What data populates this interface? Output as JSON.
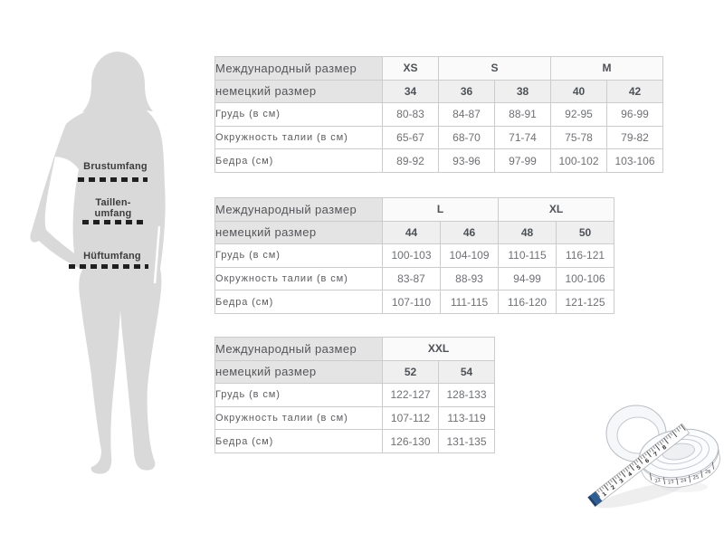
{
  "figure": {
    "bust_label": "Brustumfang",
    "waist_label_line1": "Taillen-",
    "waist_label_line2": "umfang",
    "hip_label": "Hüftumfang"
  },
  "size_tables": [
    {
      "intl_row_label": "Международный размер",
      "german_row_label": "немецкий размер",
      "intl_sizes": [
        {
          "text": "XS",
          "span": 1
        },
        {
          "text": "S",
          "span": 2
        },
        {
          "text": "M",
          "span": 2
        }
      ],
      "german_sizes": [
        "34",
        "36",
        "38",
        "40",
        "42"
      ],
      "body_rows": [
        {
          "label": "Грудь (в см)",
          "values": [
            "80-83",
            "84-87",
            "88-91",
            "92-95",
            "96-99"
          ]
        },
        {
          "label": "Окружность талии (в см)",
          "values": [
            "65-67",
            "68-70",
            "71-74",
            "75-78",
            "79-82"
          ]
        },
        {
          "label": "Бедра (см)",
          "values": [
            "89-92",
            "93-96",
            "97-99",
            "100-102",
            "103-106"
          ]
        }
      ]
    },
    {
      "intl_row_label": "Международный размер",
      "german_row_label": "немецкий размер",
      "intl_sizes": [
        {
          "text": "L",
          "span": 2
        },
        {
          "text": "XL",
          "span": 2
        }
      ],
      "german_sizes": [
        "44",
        "46",
        "48",
        "50"
      ],
      "body_rows": [
        {
          "label": "Грудь (в см)",
          "values": [
            "100-103",
            "104-109",
            "110-115",
            "116-121"
          ]
        },
        {
          "label": "Окружность талии (в см)",
          "values": [
            "83-87",
            "88-93",
            "94-99",
            "100-106"
          ]
        },
        {
          "label": "Бедра (см)",
          "values": [
            "107-110",
            "111-115",
            "116-120",
            "121-125"
          ]
        }
      ]
    },
    {
      "intl_row_label": "Международный размер",
      "german_row_label": "немецкий размер",
      "intl_sizes": [
        {
          "text": "XXL",
          "span": 2
        }
      ],
      "german_sizes": [
        "52",
        "54"
      ],
      "body_rows": [
        {
          "label": "Грудь (в см)",
          "values": [
            "122-127",
            "128-133"
          ]
        },
        {
          "label": "Окружность талии (в см)",
          "values": [
            "107-112",
            "113-119"
          ]
        },
        {
          "label": "Бедра (см)",
          "values": [
            "126-130",
            "131-135"
          ]
        }
      ]
    }
  ],
  "tape": {
    "strip_numbers": [
      "1",
      "2",
      "3",
      "4",
      "5",
      "6",
      "7",
      "8"
    ],
    "coil_numbers": [
      "22",
      "23",
      "24",
      "25",
      "26"
    ]
  },
  "colors": {
    "silhouette": "#d9d9d9",
    "hdr_bg": "#e4e4e4",
    "intl_bg": "#fafafa",
    "subhdr_bg": "#efefef",
    "border": "#cccccc",
    "text_dark": "#4e5156",
    "text_value": "#6e7074",
    "label_text": "#3c3c3c",
    "dash": "#1f1f1f",
    "tape_tip": "#2e5d92"
  }
}
